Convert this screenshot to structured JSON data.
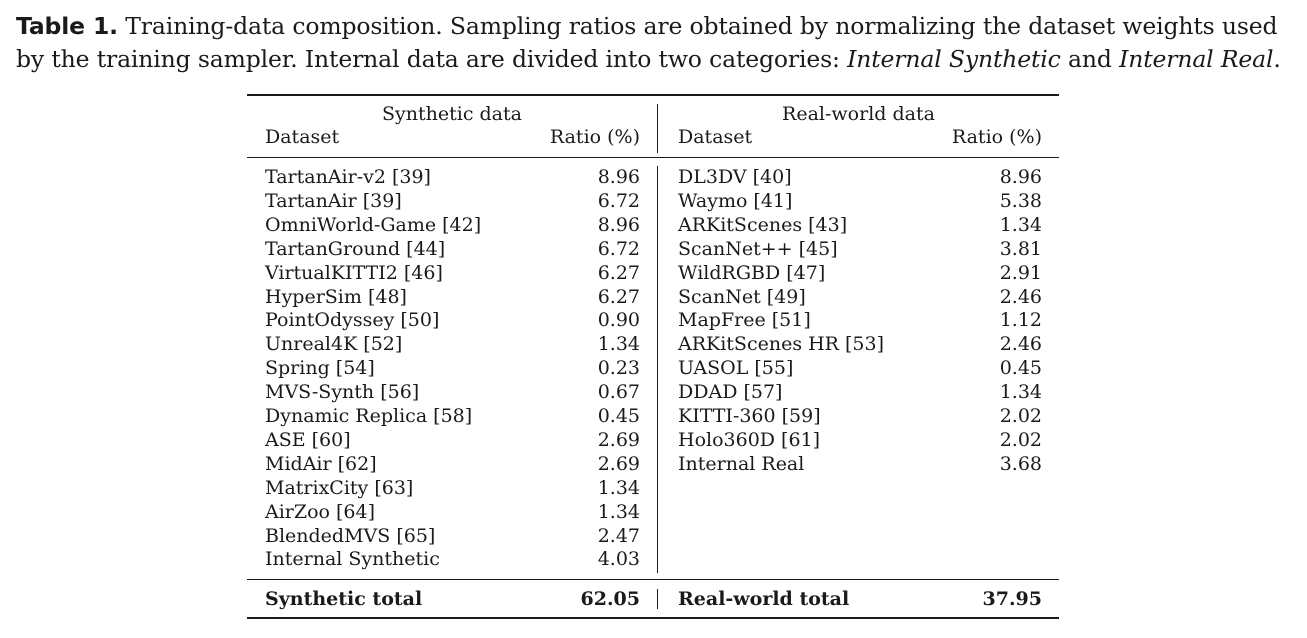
{
  "caption": {
    "label": "Table 1.",
    "text_before": " Training-data composition. Sampling ratios are obtained by normalizing the dataset weights used by the training sampler. Internal data are divided into two categories: ",
    "em1": "Internal Synthetic",
    "text_mid": " and ",
    "em2": "Internal Real",
    "text_after": "."
  },
  "table": {
    "groups": [
      "Synthetic data",
      "Real-world data"
    ],
    "col_dataset": "Dataset",
    "col_ratio": "Ratio (%)",
    "synthetic": [
      {
        "name": "TartanAir-v2 [39]",
        "ratio": "8.96"
      },
      {
        "name": "TartanAir [39]",
        "ratio": "6.72"
      },
      {
        "name": "OmniWorld-Game [42]",
        "ratio": "8.96"
      },
      {
        "name": "TartanGround [44]",
        "ratio": "6.72"
      },
      {
        "name": "VirtualKITTI2 [46]",
        "ratio": "6.27"
      },
      {
        "name": "HyperSim [48]",
        "ratio": "6.27"
      },
      {
        "name": "PointOdyssey [50]",
        "ratio": "0.90"
      },
      {
        "name": "Unreal4K [52]",
        "ratio": "1.34"
      },
      {
        "name": "Spring [54]",
        "ratio": "0.23"
      },
      {
        "name": "MVS-Synth [56]",
        "ratio": "0.67"
      },
      {
        "name": "Dynamic Replica [58]",
        "ratio": "0.45"
      },
      {
        "name": "ASE [60]",
        "ratio": "2.69"
      },
      {
        "name": "MidAir [62]",
        "ratio": "2.69"
      },
      {
        "name": "MatrixCity [63]",
        "ratio": "1.34"
      },
      {
        "name": "AirZoo [64]",
        "ratio": "1.34"
      },
      {
        "name": "BlendedMVS [65]",
        "ratio": "2.47"
      },
      {
        "name": "Internal Synthetic",
        "ratio": "4.03"
      }
    ],
    "real": [
      {
        "name": "DL3DV [40]",
        "ratio": "8.96"
      },
      {
        "name": "Waymo [41]",
        "ratio": "5.38"
      },
      {
        "name": "ARKitScenes [43]",
        "ratio": "1.34"
      },
      {
        "name": "ScanNet++ [45]",
        "ratio": "3.81"
      },
      {
        "name": "WildRGBD [47]",
        "ratio": "2.91"
      },
      {
        "name": "ScanNet [49]",
        "ratio": "2.46"
      },
      {
        "name": "MapFree [51]",
        "ratio": "1.12"
      },
      {
        "name": "ARKitScenes HR [53]",
        "ratio": "2.46"
      },
      {
        "name": "UASOL [55]",
        "ratio": "0.45"
      },
      {
        "name": "DDAD [57]",
        "ratio": "1.34"
      },
      {
        "name": "KITTI-360 [59]",
        "ratio": "2.02"
      },
      {
        "name": "Holo360D [61]",
        "ratio": "2.02"
      },
      {
        "name": "Internal Real",
        "ratio": "3.68"
      }
    ],
    "synthetic_total": {
      "label": "Synthetic total",
      "value": "62.05"
    },
    "real_total": {
      "label": "Real-world total",
      "value": "37.95"
    }
  }
}
